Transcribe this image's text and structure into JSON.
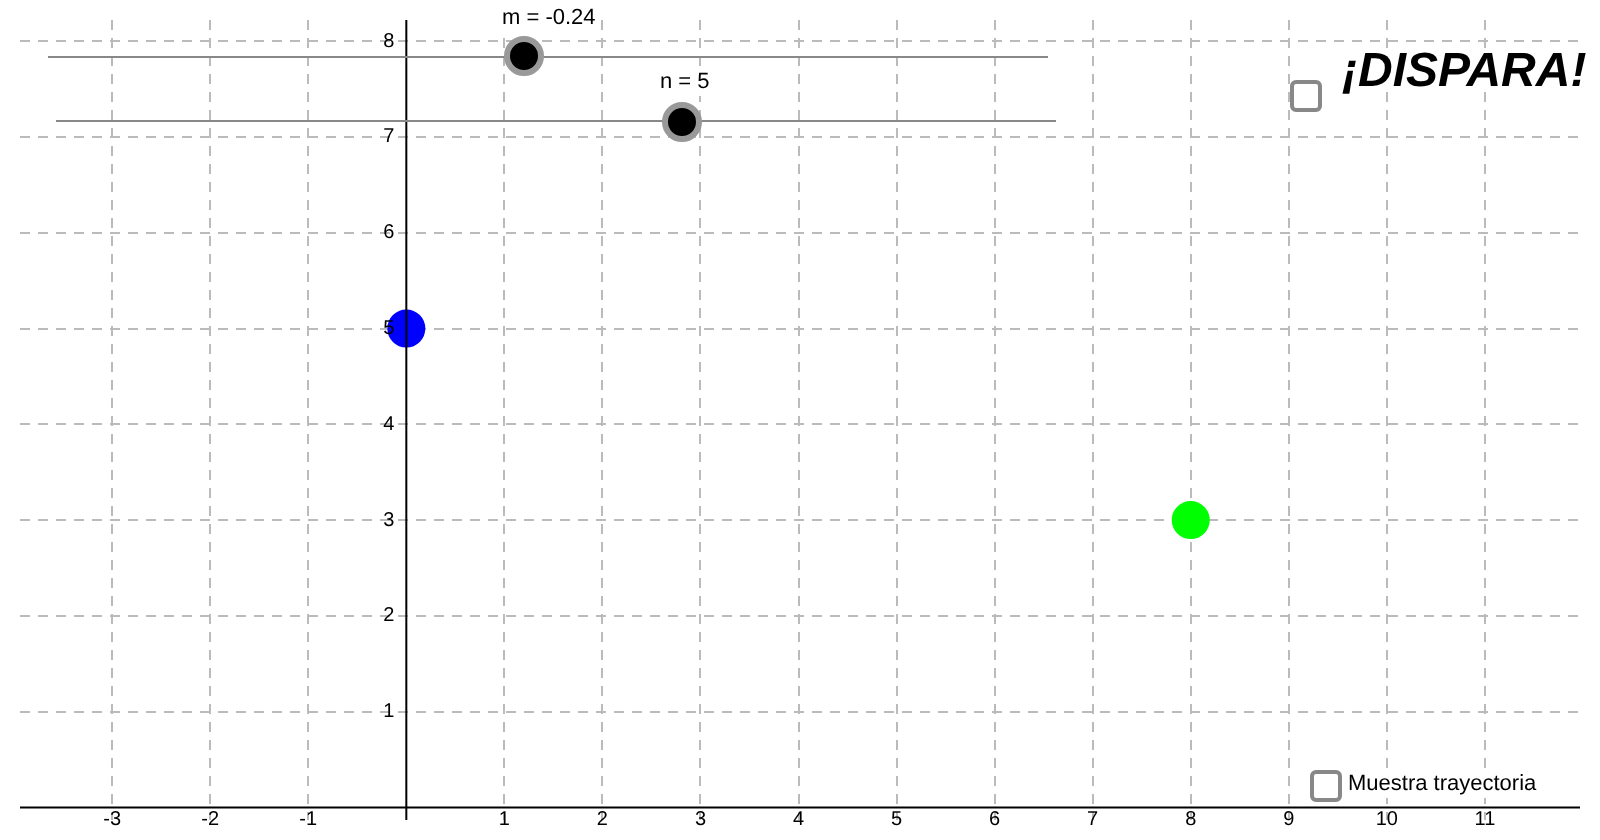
{
  "chart_data": {
    "type": "scatter",
    "series": [
      {
        "color": "#0000ff",
        "x": [
          0
        ],
        "values": [
          5
        ]
      },
      {
        "color": "#00ff00",
        "x": [
          8
        ],
        "values": [
          3
        ]
      }
    ],
    "xlim": [
      -3.94,
      11.97
    ],
    "ylim": [
      -0.13,
      8.22
    ],
    "xticks": [
      -3,
      -2,
      -1,
      1,
      2,
      3,
      4,
      5,
      6,
      7,
      8,
      9,
      10,
      11
    ],
    "yticks": [
      1,
      2,
      3,
      4,
      5,
      6,
      7,
      8
    ],
    "grid": true,
    "legend": false,
    "marker": "circle",
    "annotations": [
      "m = -0.24",
      "n = 5",
      "¡DISPARA!",
      "Muestra trayectoria"
    ]
  }
}
